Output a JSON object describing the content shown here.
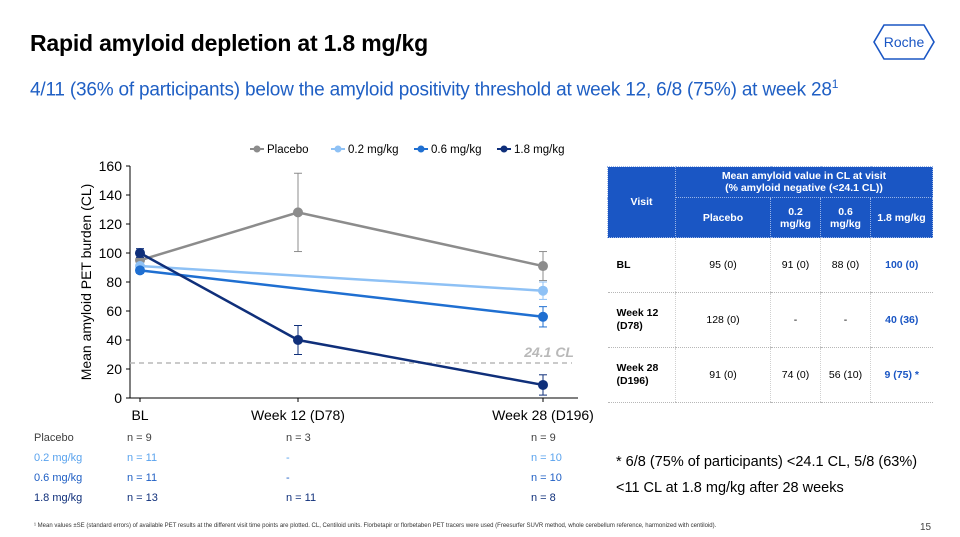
{
  "header": {
    "title": "Rapid amyloid depletion at 1.8 mg/kg",
    "subtitle": "4/11 (36% of participants) below the amyloid positivity threshold at week 12, 6/8 (75%) at week 28",
    "subtitle_sup": "1",
    "logo_text": "Roche"
  },
  "chart_data": {
    "type": "line",
    "title": "",
    "xlabel": "",
    "ylabel": "Mean amyloid PET burden (CL)",
    "categories": [
      "BL",
      "Week 12 (D78)",
      "Week 28 (D196)"
    ],
    "ylim": [
      0,
      160
    ],
    "yticks": [
      0,
      20,
      40,
      60,
      80,
      100,
      120,
      140,
      160
    ],
    "legend_position": "top",
    "threshold": {
      "value": 24.1,
      "label": "24.1 CL"
    },
    "series": [
      {
        "name": "Placebo",
        "color": "#8c8c8c",
        "values": [
          95,
          128,
          91
        ],
        "err": [
          3,
          27,
          10
        ]
      },
      {
        "name": "0.2 mg/kg",
        "color": "#8ec1f5",
        "values": [
          91,
          null,
          74
        ],
        "err": [
          2,
          null,
          6
        ]
      },
      {
        "name": "0.6 mg/kg",
        "color": "#1f6fd1",
        "values": [
          88,
          null,
          56
        ],
        "err": [
          2,
          null,
          7
        ]
      },
      {
        "name": "1.8 mg/kg",
        "color": "#0f2f7a",
        "values": [
          100,
          40,
          9
        ],
        "err": [
          3,
          10,
          7
        ]
      }
    ]
  },
  "n_table": [
    {
      "label": "Placebo",
      "color": "#404040",
      "n": [
        "n = 9",
        "n = 3",
        "n = 9"
      ]
    },
    {
      "label": "0.2 mg/kg",
      "color": "#5aa3ee",
      "n": [
        "n = 11",
        "-",
        "n = 10"
      ]
    },
    {
      "label": "0.6 mg/kg",
      "color": "#1f5fc4",
      "n": [
        "n = 11",
        "-",
        "n = 10"
      ]
    },
    {
      "label": "1.8 mg/kg",
      "color": "#0f2f7a",
      "n": [
        "n = 13",
        "n = 11",
        "n = 8"
      ]
    }
  ],
  "table": {
    "visit_header": "Visit",
    "group_header_line1": "Mean amyloid value in CL at visit",
    "group_header_line2": "(% amyloid negative (<24.1 CL))",
    "col_headers": [
      "Placebo",
      "0.2 mg/kg",
      "0.6 mg/kg",
      "1.8 mg/kg"
    ],
    "rows": [
      {
        "visit": "BL",
        "cells": [
          "95 (0)",
          "91 (0)",
          "88 (0)",
          "100 (0)"
        ]
      },
      {
        "visit": "Week 12 (D78)",
        "cells": [
          "128 (0)",
          "-",
          "-",
          "40 (36)"
        ]
      },
      {
        "visit": "Week 28 (D196)",
        "cells": [
          "91 (0)",
          "74 (0)",
          "56 (10)",
          "9 (75) *"
        ]
      }
    ]
  },
  "note": "* 6/8 (75% of participants) <24.1 CL, 5/8 (63%) <11 CL at 1.8 mg/kg after 28 weeks",
  "footnote": "¹ Mean values ±SE (standard errors) of available PET results at the different visit time points are plotted. CL, Centiloid units. Florbetapir or florbetaben PET tracers were used (Freesurfer SUVR method, whole cerebellum reference, harmonized with centiloid).",
  "page_number": "15"
}
